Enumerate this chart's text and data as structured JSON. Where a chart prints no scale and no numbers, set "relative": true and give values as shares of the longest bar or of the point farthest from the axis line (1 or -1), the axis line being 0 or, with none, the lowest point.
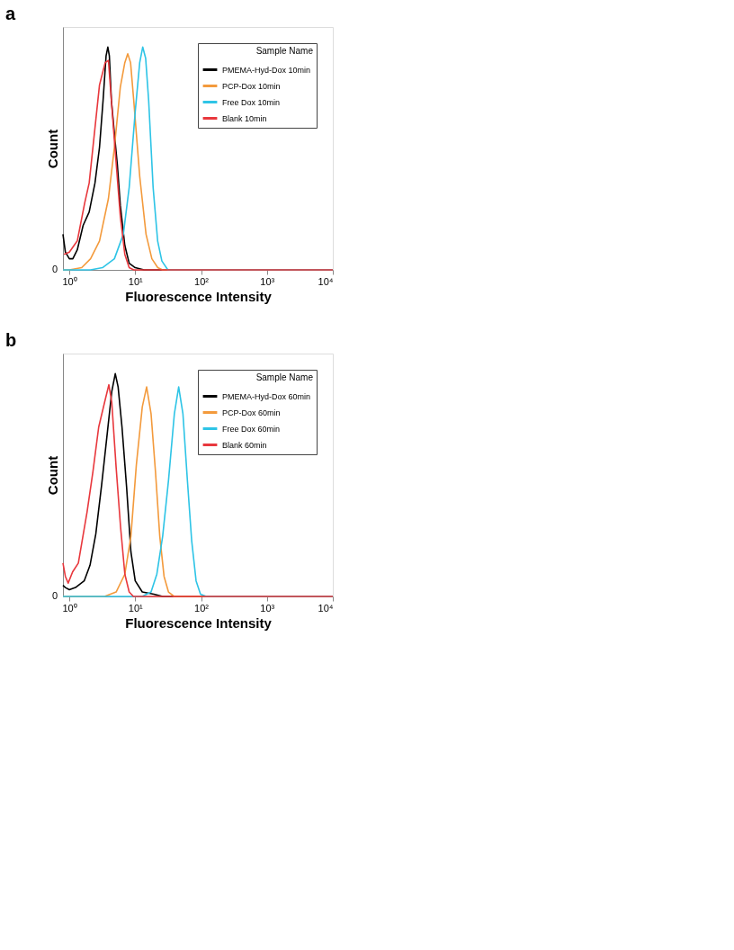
{
  "chart_data": [
    {
      "type": "line",
      "title": "a",
      "xlabel": "Fluorescence Intensity",
      "ylabel": "Count",
      "relative": true,
      "legend": "top right",
      "legend_title": "Sample Name",
      "log": "x",
      "grid": false,
      "marker": "none",
      "line_style": "solid",
      "xlim": [
        0.8,
        10000
      ],
      "xticks": [
        {
          "value": 1,
          "label": "10⁰"
        },
        {
          "value": 10,
          "label": "10¹"
        },
        {
          "value": 100,
          "label": "10²"
        },
        {
          "value": 1000,
          "label": "10³"
        },
        {
          "value": 10000,
          "label": "10⁴"
        }
      ],
      "annotations": [
        "0"
      ],
      "series": [
        {
          "name": "PMEMA-Hyd-Dox  10min",
          "color": "#000000",
          "x": [
            0.8,
            0.87,
            1.0,
            1.13,
            1.32,
            1.62,
            2.0,
            2.45,
            2.87,
            3.25,
            3.61,
            3.84,
            4.05,
            4.35,
            4.83,
            5.36,
            5.94,
            6.95,
            8.1,
            10,
            13.6,
            10000
          ],
          "values": [
            0.16,
            0.08,
            0.05,
            0.05,
            0.09,
            0.2,
            0.26,
            0.39,
            0.55,
            0.76,
            0.96,
            1.0,
            0.96,
            0.76,
            0.61,
            0.47,
            0.29,
            0.11,
            0.03,
            0.01,
            0,
            0
          ]
        },
        {
          "name": "PCP-Dox 10min",
          "color": "#f39a3c",
          "x": [
            0.8,
            1.0,
            1.54,
            2.1,
            2.87,
            3.92,
            4.83,
            5.94,
            6.95,
            7.7,
            8.5,
            9.5,
            11.7,
            14.6,
            17.9,
            22,
            26,
            10000
          ],
          "values": [
            0,
            0,
            0.01,
            0.05,
            0.13,
            0.32,
            0.55,
            0.82,
            0.93,
            0.97,
            0.93,
            0.76,
            0.42,
            0.16,
            0.05,
            0.01,
            0,
            0
          ]
        },
        {
          "name": "Free Dox 10min",
          "color": "#2ec4e6",
          "x": [
            0.8,
            2.1,
            3.18,
            4.83,
            6.6,
            8.1,
            10,
            11.7,
            13,
            14.4,
            16.0,
            18.7,
            21.9,
            25.4,
            31.3,
            38,
            10000
          ],
          "values": [
            0,
            0,
            0.01,
            0.05,
            0.16,
            0.37,
            0.71,
            0.93,
            1.0,
            0.95,
            0.76,
            0.37,
            0.13,
            0.04,
            0,
            0,
            0
          ]
        },
        {
          "name": "Blank  10min",
          "color": "#e8383d",
          "x": [
            0.83,
            1.0,
            1.32,
            1.71,
            2.0,
            2.87,
            3.5,
            3.92,
            4.35,
            4.83,
            5.94,
            6.95,
            8.1,
            9.5,
            10000
          ],
          "values": [
            0.07,
            0.08,
            0.13,
            0.3,
            0.39,
            0.83,
            0.93,
            0.94,
            0.76,
            0.58,
            0.24,
            0.07,
            0.01,
            0,
            0
          ]
        }
      ]
    },
    {
      "type": "line",
      "title": "b",
      "xlabel": "Fluorescence Intensity",
      "ylabel": "Count",
      "relative": true,
      "legend": "top right",
      "legend_title": "Sample Name",
      "log": "x",
      "grid": false,
      "marker": "none",
      "line_style": "solid",
      "xlim": [
        0.8,
        10000
      ],
      "xticks": [
        {
          "value": 1,
          "label": "10⁰"
        },
        {
          "value": 10,
          "label": "10¹"
        },
        {
          "value": 100,
          "label": "10²"
        },
        {
          "value": 1000,
          "label": "10³"
        },
        {
          "value": 10000,
          "label": "10⁴"
        }
      ],
      "annotations": [
        "0"
      ],
      "series": [
        {
          "name": "PMEMA-Hyd-Dox  60min",
          "color": "#000000",
          "x": [
            0.8,
            0.87,
            1.0,
            1.24,
            1.68,
            2.06,
            2.52,
            3.09,
            3.79,
            4.41,
            4.98,
            5.5,
            6.3,
            7.4,
            8.6,
            10,
            12.8,
            19.2,
            26.1,
            35,
            10000
          ],
          "values": [
            0.05,
            0.04,
            0.03,
            0.04,
            0.07,
            0.14,
            0.28,
            0.5,
            0.74,
            0.92,
            1.0,
            0.94,
            0.76,
            0.49,
            0.2,
            0.07,
            0.02,
            0.01,
            0,
            0,
            0
          ]
        },
        {
          "name": "PCP-Dox 60min",
          "color": "#f39a3c",
          "x": [
            0.8,
            3.42,
            5.13,
            6.96,
            8.6,
            10.4,
            12.8,
            14.9,
            17.4,
            20.3,
            23.6,
            27.4,
            32,
            39,
            10000
          ],
          "values": [
            0,
            0,
            0.02,
            0.1,
            0.27,
            0.59,
            0.85,
            0.94,
            0.82,
            0.56,
            0.27,
            0.09,
            0.02,
            0,
            0
          ]
        },
        {
          "name": "Free Dox 60min",
          "color": "#2ec4e6",
          "x": [
            0.8,
            12.8,
            17.4,
            21.3,
            26.1,
            32,
            39.3,
            45.7,
            53,
            62,
            72,
            84,
            98,
            120,
            10000
          ],
          "values": [
            0,
            0,
            0.02,
            0.1,
            0.27,
            0.52,
            0.82,
            0.94,
            0.82,
            0.52,
            0.25,
            0.07,
            0.01,
            0,
            0
          ]
        },
        {
          "name": "Blank  60min",
          "color": "#e8383d",
          "x": [
            0.8,
            0.87,
            0.96,
            1.12,
            1.37,
            1.86,
            2.28,
            2.79,
            3.42,
            3.98,
            4.41,
            5.13,
            6.0,
            6.96,
            8.1,
            9.4,
            12.8,
            10000
          ],
          "values": [
            0.15,
            0.09,
            0.06,
            0.11,
            0.15,
            0.38,
            0.56,
            0.76,
            0.87,
            0.95,
            0.87,
            0.58,
            0.31,
            0.1,
            0.02,
            0,
            0,
            0
          ]
        }
      ]
    }
  ]
}
